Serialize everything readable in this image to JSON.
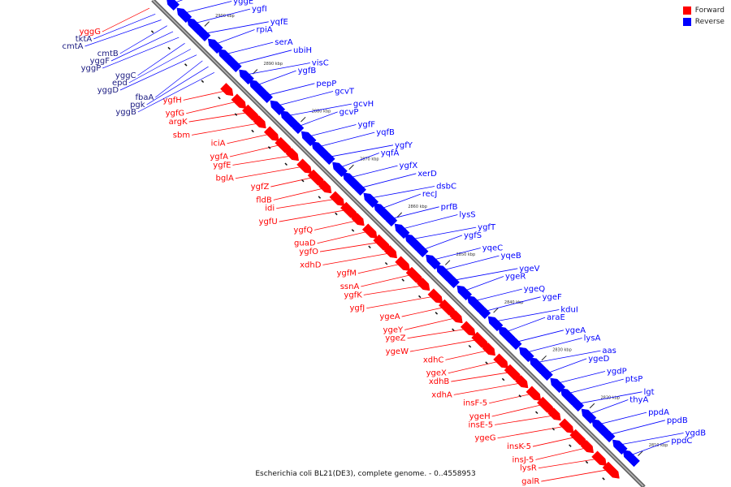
{
  "legend": {
    "forward_label": "Forward",
    "reverse_label": "Reverse",
    "forward_color": "#ff0000",
    "reverse_color": "#0000ff"
  },
  "caption": "Escherichia coli BL21(DE3), complete genome. - 0..4558953",
  "ticks": [
    "2900 kbp",
    "2890 kbp",
    "2880 kbp",
    "2870 kbp",
    "2860 kbp",
    "2850 kbp",
    "2840 kbp",
    "2830 kbp",
    "2820 kbp",
    "2810 kbp"
  ],
  "genes": {
    "reverse": [
      "yggA",
      "yggE",
      "ygfI",
      "yqfE",
      "rpiA",
      "serA",
      "ubiH",
      "visC",
      "ygfB",
      "pepP",
      "gcvT",
      "gcvH",
      "gcvP",
      "ygfF",
      "yqfB",
      "ygfY",
      "yqfA",
      "ygfX",
      "xerD",
      "dsbC",
      "recJ",
      "prfB",
      "lysS",
      "ygfT",
      "ygfS",
      "yqeC",
      "yqeB",
      "ygeV",
      "ygeR",
      "ygeQ",
      "ygeF",
      "kduI",
      "araE",
      "ygeA",
      "lysA",
      "aas",
      "ygeD",
      "ygdP",
      "ptsP",
      "lgt",
      "thyA",
      "ppdA",
      "ppdB",
      "ygdB",
      "ppdC"
    ],
    "forward_top": [
      "yggG",
      "tktA",
      "cmtA",
      "cmtB",
      "yggF",
      "yggP",
      "yggC",
      "epd",
      "yggD",
      "fbaA",
      "pgk",
      "yggB"
    ],
    "forward": [
      "ygfH",
      "ygfG",
      "argK",
      "sbm",
      "iciA",
      "ygfA",
      "ygfE",
      "bglA",
      "ygfZ",
      "fldB",
      "idi",
      "ygfU",
      "ygfQ",
      "guaD",
      "ygfO",
      "xdhD",
      "ygfM",
      "ssnA",
      "ygfK",
      "ygfJ",
      "ygeA",
      "ygeY",
      "ygeZ",
      "ygeW",
      "xdhC",
      "ygeX",
      "xdhB",
      "xdhA",
      "insF-5",
      "ygeH",
      "insE-5",
      "ygeG",
      "insK-5",
      "insJ-5",
      "lysR",
      "galR"
    ]
  }
}
